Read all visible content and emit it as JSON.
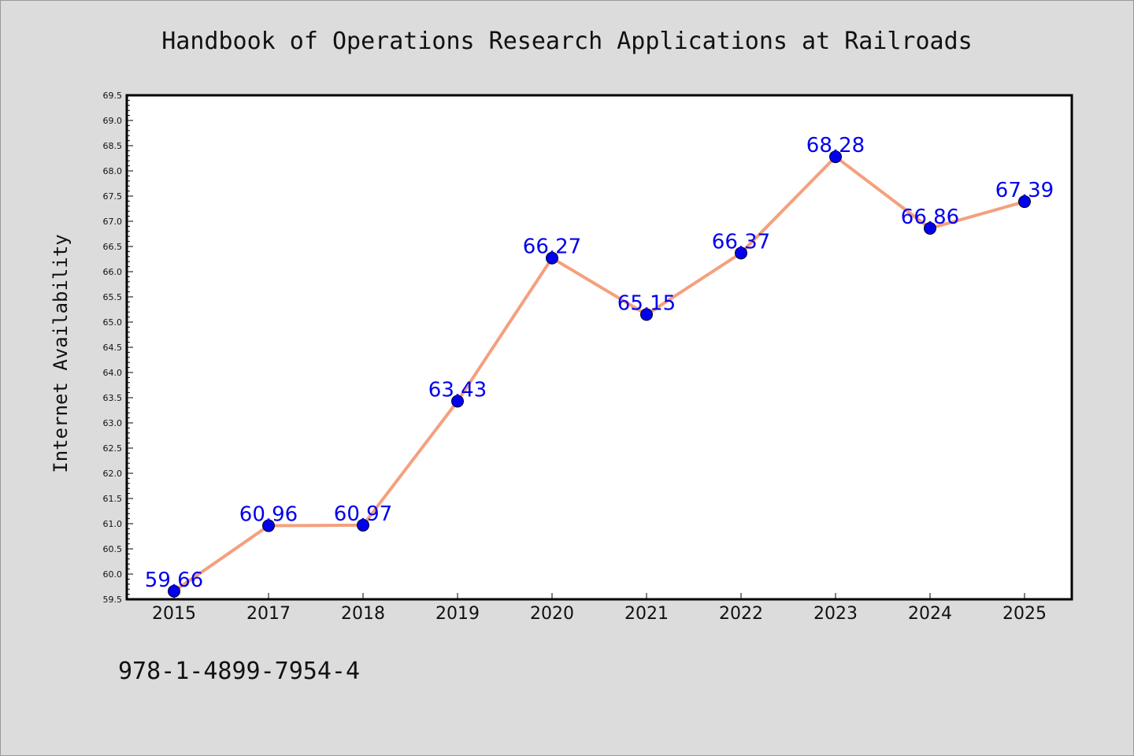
{
  "footer": {
    "isbn": "978-1-4899-7954-4"
  },
  "colors": {
    "line": "#f4a07e",
    "marker": "#0000ee",
    "label": "#0000ee",
    "background": "#dcdcdc",
    "plot_background": "#ffffff"
  },
  "chart_data": {
    "type": "line",
    "title": "Handbook of Operations Research Applications at Railroads",
    "xlabel": "",
    "ylabel": "Internet Availability",
    "categories": [
      "2015",
      "2017",
      "2018",
      "2019",
      "2020",
      "2021",
      "2022",
      "2023",
      "2024",
      "2025"
    ],
    "series": [
      {
        "values": [
          59.66,
          60.96,
          60.97,
          63.43,
          66.27,
          65.15,
          66.37,
          68.28,
          66.86,
          67.39
        ]
      }
    ],
    "data_labels": [
      "59.66",
      "60.96",
      "60.97",
      "63.43",
      "66.27",
      "65.15",
      "66.37",
      "68.28",
      "66.86",
      "67.39"
    ],
    "ylim": [
      59.5,
      69.5
    ],
    "yticks": [
      "59.5",
      "60.0",
      "60.5",
      "61.0",
      "61.5",
      "62.0",
      "62.5",
      "63.0",
      "63.5",
      "64.0",
      "64.5",
      "65.0",
      "65.5",
      "66.0",
      "66.5",
      "67.0",
      "67.5",
      "68.0",
      "68.5",
      "69.0",
      "69.5"
    ],
    "grid": false,
    "legend": "none"
  }
}
